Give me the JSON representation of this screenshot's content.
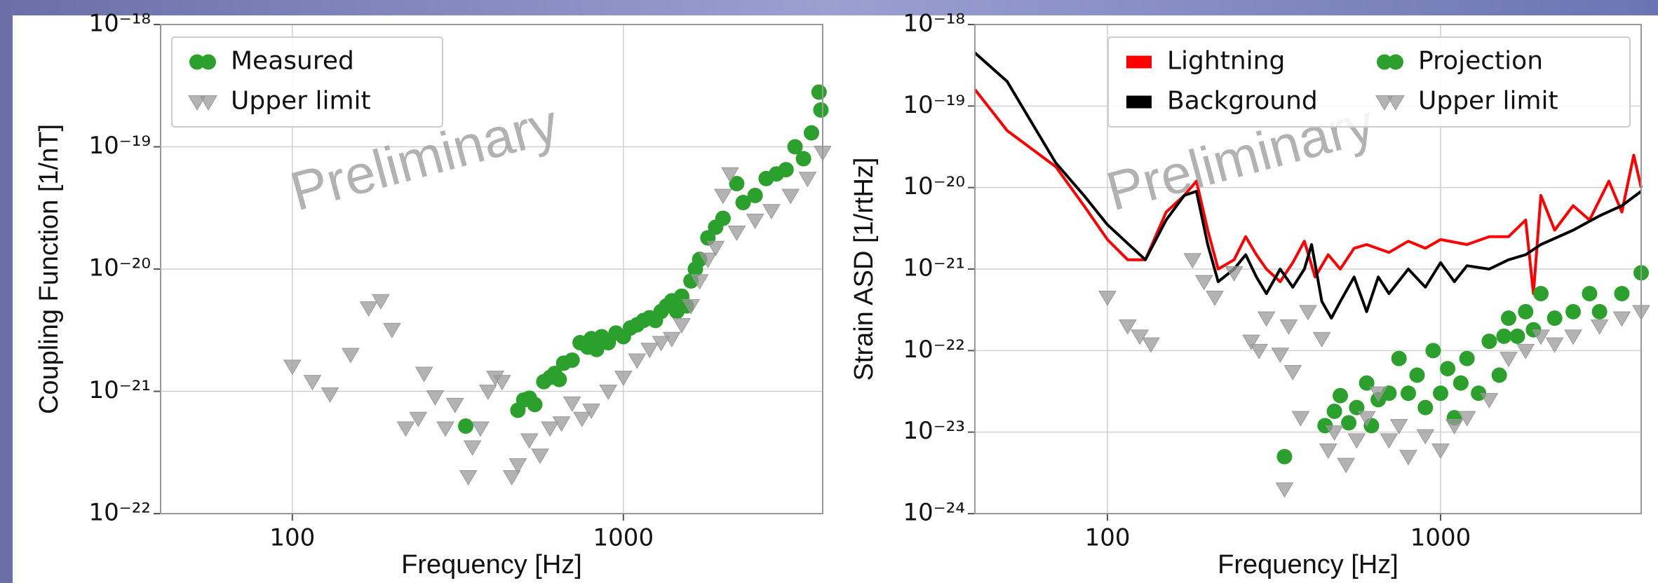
{
  "chart_data": [
    {
      "type": "scatter",
      "xlabel": "Frequency [Hz]",
      "ylabel": "Coupling Function [1/nT]",
      "watermark": "Preliminary",
      "xscale": "log",
      "yscale": "log",
      "grid": true,
      "legend_loc": "upper left",
      "legend_ncol": 1,
      "xlim": [
        40,
        4000
      ],
      "xticks": [
        100,
        1000
      ],
      "ylim": [
        1e-22,
        1e-18
      ],
      "yticks": [
        {
          "value": 1e-22,
          "label": "10⁻²²"
        },
        {
          "value": 1e-21,
          "label": "10⁻²¹"
        },
        {
          "value": 1e-20,
          "label": "10⁻²⁰"
        },
        {
          "value": 1e-19,
          "label": "10⁻¹⁹"
        },
        {
          "value": 1e-18,
          "label": "10⁻¹⁸"
        }
      ],
      "series": [
        {
          "name": "Measured",
          "color": "#2ca02c",
          "marker": "o",
          "x": [
            334,
            480,
            500,
            520,
            540,
            575,
            600,
            620,
            640,
            660,
            700,
            740,
            780,
            800,
            830,
            860,
            900,
            950,
            1000,
            1050,
            1100,
            1150,
            1200,
            1250,
            1300,
            1350,
            1400,
            1450,
            1500,
            1550,
            1600,
            1650,
            1700,
            1800,
            1900,
            2000,
            2200,
            2300,
            2500,
            2700,
            2900,
            3100,
            3300,
            3500,
            3700,
            3900,
            3950
          ],
          "values": [
            5.2e-22,
            7e-22,
            8.5e-22,
            8.8e-22,
            7.8e-22,
            1.2e-21,
            1.3e-21,
            1.4e-21,
            1.25e-21,
            1.7e-21,
            1.8e-21,
            2.5e-21,
            2.3e-21,
            2.7e-21,
            2.2e-21,
            2.8e-21,
            2.5e-21,
            3e-21,
            2.8e-21,
            3.3e-21,
            3.5e-21,
            3.8e-21,
            4e-21,
            3.8e-21,
            4.5e-21,
            5e-21,
            5.5e-21,
            4.5e-21,
            6e-21,
            5e-21,
            8e-21,
            1e-20,
            1.2e-20,
            1.8e-20,
            2.2e-20,
            2.6e-20,
            5e-20,
            3.5e-20,
            4e-20,
            5.5e-20,
            6e-20,
            6.5e-20,
            1e-19,
            8e-20,
            1.3e-19,
            2.8e-19,
            2e-19
          ]
        },
        {
          "name": "Upper limit",
          "color": "#999999",
          "marker": "v",
          "x": [
            100,
            115,
            130,
            150,
            170,
            185,
            200,
            220,
            240,
            250,
            270,
            290,
            310,
            340,
            350,
            370,
            390,
            410,
            430,
            460,
            480,
            520,
            560,
            600,
            650,
            700,
            750,
            800,
            900,
            1000,
            1100,
            1200,
            1300,
            1400,
            1500,
            1600,
            1700,
            1800,
            1900,
            2000,
            2100,
            2200,
            2500,
            2800,
            3200,
            3600,
            4000
          ],
          "values": [
            1.6e-21,
            1.2e-21,
            9.5e-22,
            2e-21,
            4.8e-21,
            5.5e-21,
            3.2e-21,
            5e-22,
            6e-22,
            1.4e-21,
            9e-22,
            5e-22,
            7.8e-22,
            2e-22,
            3.5e-22,
            5e-22,
            1e-21,
            1.3e-21,
            1.2e-21,
            2e-22,
            2.5e-22,
            4e-22,
            3e-22,
            5e-22,
            5.5e-22,
            8e-22,
            6e-22,
            7e-22,
            1e-21,
            1.3e-21,
            1.8e-21,
            2.2e-21,
            2.5e-21,
            2.7e-21,
            3.5e-21,
            5e-21,
            8e-21,
            1.2e-20,
            1.5e-20,
            4e-20,
            6e-20,
            2e-20,
            2.5e-20,
            3e-20,
            4e-20,
            5.5e-20,
            9e-20
          ]
        }
      ]
    },
    {
      "type": "scatter",
      "xlabel": "Frequency [Hz]",
      "ylabel": "Strain ASD [1/rtHz]",
      "watermark": "Preliminary",
      "xscale": "log",
      "yscale": "log",
      "grid": true,
      "legend_loc": "upper right",
      "legend_ncol": 2,
      "xlim": [
        40,
        4000
      ],
      "xticks": [
        100,
        1000
      ],
      "ylim": [
        1e-24,
        1e-18
      ],
      "yticks": [
        {
          "value": 1e-24,
          "label": "10⁻²⁴"
        },
        {
          "value": 1e-23,
          "label": "10⁻²³"
        },
        {
          "value": 1e-22,
          "label": "10⁻²²"
        },
        {
          "value": 1e-21,
          "label": "10⁻²¹"
        },
        {
          "value": 1e-20,
          "label": "10⁻²⁰"
        },
        {
          "value": 1e-19,
          "label": "10⁻¹⁹"
        },
        {
          "value": 1e-18,
          "label": "10⁻¹⁸"
        }
      ],
      "series": [
        {
          "name": "Lightning",
          "color": "#ff0000",
          "type": "line",
          "x": [
            40,
            50,
            70,
            85,
            100,
            115,
            130,
            150,
            170,
            185,
            200,
            215,
            240,
            260,
            280,
            300,
            330,
            360,
            390,
            420,
            460,
            500,
            550,
            600,
            700,
            800,
            900,
            1000,
            1200,
            1400,
            1600,
            1800,
            1900,
            2000,
            2200,
            2500,
            2800,
            3200,
            3500,
            3800,
            4000
          ],
          "values": [
            1.6e-19,
            5e-20,
            1.8e-20,
            6e-21,
            2.3e-21,
            1.3e-21,
            1.3e-21,
            5e-21,
            8e-21,
            1.2e-20,
            3e-21,
            1e-21,
            1.3e-21,
            2.5e-21,
            1.5e-21,
            1e-21,
            7e-22,
            1.2e-21,
            2.2e-21,
            8e-22,
            1.5e-21,
            1e-21,
            1.8e-21,
            2e-21,
            1.6e-21,
            2.2e-21,
            1.8e-21,
            2.3e-21,
            2e-21,
            2.5e-21,
            2.5e-21,
            4e-21,
            5e-22,
            8e-21,
            3e-21,
            6e-21,
            4e-21,
            1.2e-20,
            5e-21,
            2.5e-20,
            1e-20
          ]
        },
        {
          "name": "Background",
          "color": "#000000",
          "type": "line",
          "x": [
            40,
            50,
            70,
            85,
            100,
            130,
            150,
            170,
            185,
            200,
            215,
            240,
            260,
            280,
            300,
            330,
            360,
            390,
            410,
            440,
            470,
            500,
            550,
            600,
            650,
            700,
            800,
            900,
            1000,
            1100,
            1200,
            1400,
            1600,
            1800,
            2000,
            2500,
            3000,
            3500,
            4000
          ],
          "values": [
            4.5e-19,
            2e-19,
            2e-20,
            8e-21,
            3.5e-21,
            1.3e-21,
            4e-21,
            8e-21,
            9e-21,
            2e-21,
            7e-22,
            1e-21,
            1.5e-21,
            8e-22,
            5e-22,
            1e-21,
            6e-22,
            1e-21,
            2e-21,
            4e-22,
            2.5e-22,
            4e-22,
            8e-22,
            3e-22,
            8e-22,
            5e-22,
            1e-21,
            6e-22,
            1.2e-21,
            7e-22,
            1.1e-21,
            1e-21,
            1.3e-21,
            1.5e-21,
            2e-21,
            3e-21,
            4.5e-21,
            6e-21,
            9e-21
          ]
        },
        {
          "name": "Projection",
          "color": "#2ca02c",
          "marker": "o",
          "x": [
            340,
            450,
            480,
            500,
            530,
            560,
            600,
            620,
            650,
            700,
            750,
            800,
            850,
            900,
            950,
            1000,
            1050,
            1100,
            1150,
            1200,
            1300,
            1400,
            1500,
            1550,
            1600,
            1700,
            1800,
            1900,
            2000,
            2200,
            2500,
            2800,
            3000,
            3500,
            4000
          ],
          "values": [
            5e-24,
            1.2e-23,
            1.8e-23,
            2.8e-23,
            1.3e-23,
            2e-23,
            4e-23,
            1.2e-23,
            2.5e-23,
            3e-23,
            8e-23,
            3e-23,
            5e-23,
            2e-23,
            1e-22,
            3e-23,
            6e-23,
            1.5e-23,
            4e-23,
            8e-23,
            3e-23,
            1.3e-22,
            5e-23,
            1.5e-22,
            2.5e-22,
            1.5e-22,
            3e-22,
            1.8e-22,
            5e-22,
            2.5e-22,
            3e-22,
            5e-22,
            3e-22,
            5e-22,
            9e-22
          ]
        },
        {
          "name": "Upper limit",
          "color": "#999999",
          "marker": "v",
          "x": [
            100,
            115,
            125,
            135,
            180,
            195,
            210,
            240,
            270,
            285,
            300,
            330,
            340,
            350,
            360,
            380,
            400,
            440,
            460,
            480,
            520,
            560,
            600,
            650,
            700,
            750,
            800,
            900,
            1000,
            1100,
            1200,
            1400,
            1600,
            1800,
            2000,
            2200,
            2500,
            3000,
            3500,
            4000
          ],
          "values": [
            4.5e-22,
            2e-22,
            1.5e-22,
            1.2e-22,
            1.3e-21,
            7e-22,
            4.5e-22,
            9e-22,
            1.3e-22,
            1e-22,
            2.5e-22,
            9e-23,
            2e-24,
            2e-22,
            5.5e-23,
            1.5e-23,
            3e-22,
            1.4e-22,
            6e-24,
            1e-23,
            4e-24,
            8e-24,
            1.5e-23,
            3e-23,
            8e-24,
            1.2e-23,
            5e-24,
            9e-24,
            6e-24,
            1.2e-23,
            1.5e-23,
            2.5e-23,
            8e-23,
            1e-22,
            1.5e-22,
            1.2e-22,
            1.5e-22,
            2e-22,
            2.5e-22,
            3e-22
          ]
        }
      ]
    }
  ]
}
